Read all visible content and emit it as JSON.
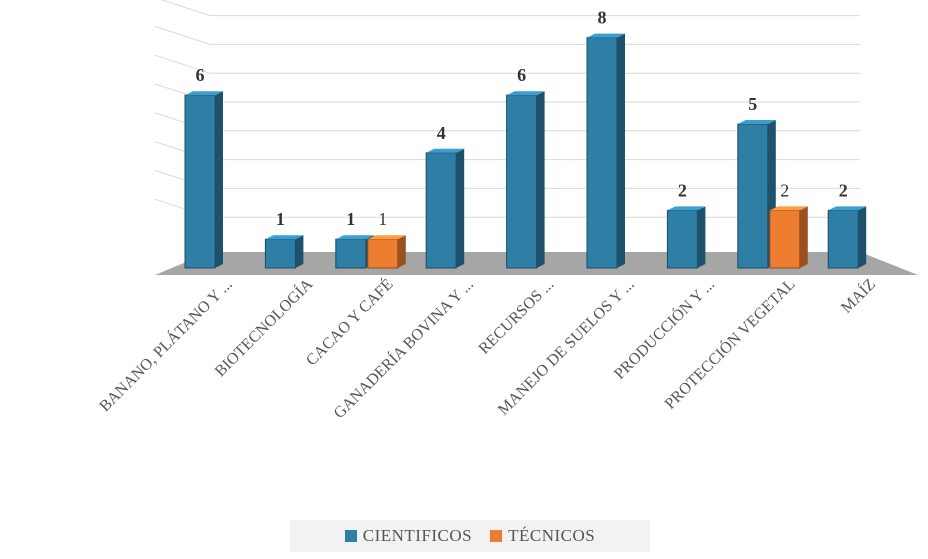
{
  "chart_data": {
    "type": "bar",
    "categories": [
      "BANANO, PLÁTANO Y ...",
      "BIOTECNOLOGÍA",
      "CACAO Y CAFÉ",
      "GANADERÍA BOVINA Y ...",
      "RECURSOS ...",
      "MANEJO DE SUELOS Y ...",
      "PRODUCCIÓN Y ...",
      "PROTECCIÓN VEGETAL",
      "MAÍZ"
    ],
    "series": [
      {
        "name": "CIENTIFICOS",
        "color": "#2e7ea6",
        "values": [
          6,
          1,
          1,
          4,
          6,
          8,
          2,
          5,
          2
        ]
      },
      {
        "name": "TÉCNICOS",
        "color": "#ed7d31",
        "values": [
          null,
          null,
          1,
          null,
          null,
          null,
          null,
          2,
          null
        ]
      }
    ],
    "value_labels": {
      "CIENTIFICOS": [
        "6",
        "1",
        "1",
        "4",
        "6",
        "8",
        "2",
        "5",
        "2"
      ],
      "TÉCNICOS": [
        null,
        null,
        "1",
        null,
        null,
        null,
        null,
        "2",
        null
      ]
    },
    "ylim": [
      0,
      8
    ],
    "grid": true,
    "legend_position": "bottom",
    "style": "3d-column"
  }
}
